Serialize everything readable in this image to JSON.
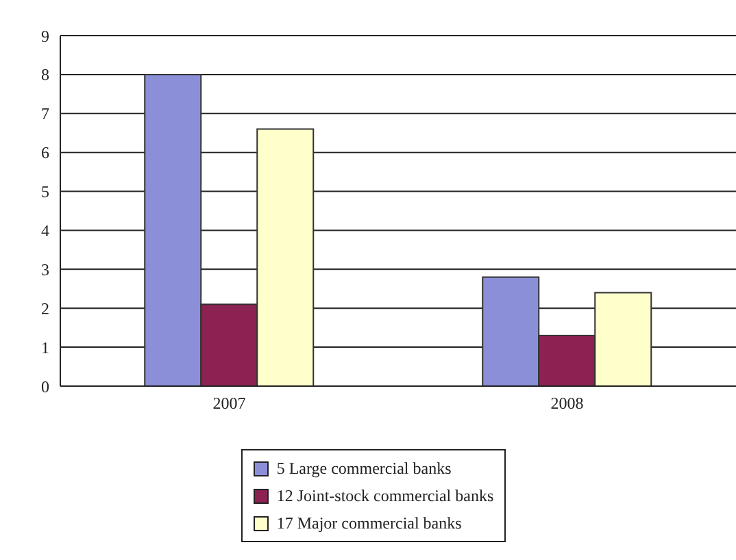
{
  "chart_data": {
    "type": "bar",
    "categories": [
      "2007",
      "2008"
    ],
    "series": [
      {
        "name": "5 Large commercial banks",
        "color": "#8b8fd8",
        "values": [
          8.0,
          2.8
        ]
      },
      {
        "name": "12 Joint-stock commercial banks",
        "color": "#8b2252",
        "values": [
          2.1,
          1.3
        ]
      },
      {
        "name": "17 Major commercial banks",
        "color": "#ffffcc",
        "values": [
          6.6,
          2.4
        ]
      }
    ],
    "ylim": [
      0,
      9
    ],
    "yticks": [
      0,
      1,
      2,
      3,
      4,
      5,
      6,
      7,
      8,
      9
    ],
    "grid": "y",
    "legend": "bottom"
  }
}
